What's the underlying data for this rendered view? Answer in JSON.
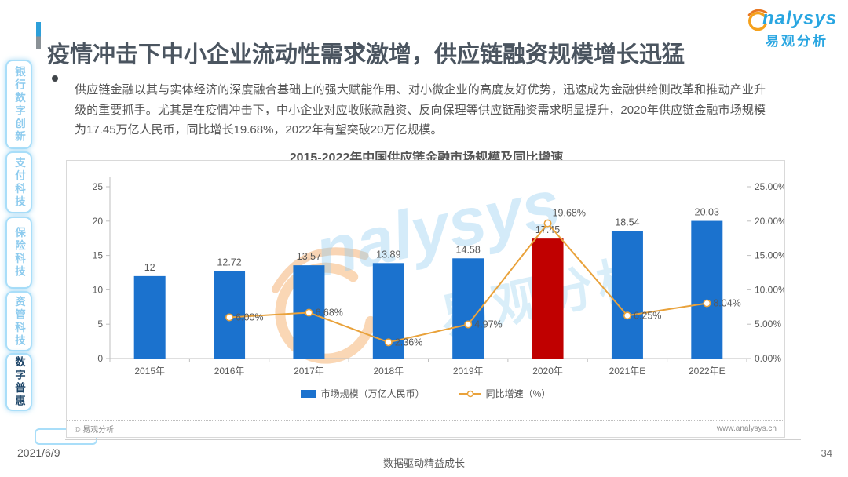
{
  "page": {
    "title": "疫情冲击下中小企业流动性需求激增，供应链融资规模增长迅猛",
    "date": "2021/6/9",
    "footer_slogan": "数据驱动精益成长",
    "page_number": "34"
  },
  "logo": {
    "brand": "nalysys",
    "brand_cn": "易观分析"
  },
  "watermark": {
    "brand": "nalysys",
    "brand_cn": "易观分析"
  },
  "sidebar": {
    "items": [
      {
        "label": "银行数字创新",
        "active": false
      },
      {
        "label": "支付科技",
        "active": false
      },
      {
        "label": "保险科技",
        "active": false
      },
      {
        "label": "资管科技",
        "active": false
      },
      {
        "label": "数字普惠",
        "active": true
      }
    ]
  },
  "bullet": {
    "text": "供应链金融以其与实体经济的深度融合基础上的强大赋能作用、对小微企业的高度友好优势，迅速成为金融供给侧改革和推动产业升级的重要抓手。尤其是在疫情冲击下，中小企业对应收账款融资、反向保理等供应链融资需求明显提升，2020年供应链金融市场规模为17.45万亿人民币，同比增长19.68%，2022年有望突破20万亿规模。"
  },
  "chart_data": {
    "type": "bar+line",
    "title": "2015-2022年中国供应链金融市场规模及同比增速",
    "categories": [
      "2015年",
      "2016年",
      "2017年",
      "2018年",
      "2019年",
      "2020年",
      "2021年E",
      "2022年E"
    ],
    "series": [
      {
        "name": "市场规模（万亿人民币）",
        "type": "bar",
        "values": [
          12,
          12.72,
          13.57,
          13.89,
          14.58,
          17.45,
          18.54,
          20.03
        ],
        "labels": [
          "12",
          "12.72",
          "13.57",
          "13.89",
          "14.58",
          "17.45",
          "18.54",
          "20.03"
        ]
      },
      {
        "name": "同比增速（%）",
        "type": "line",
        "values": [
          null,
          6.0,
          6.68,
          2.36,
          4.97,
          19.68,
          6.25,
          8.04
        ],
        "labels": [
          null,
          "6.00%",
          "6.68%",
          "2.36%",
          "4.97%",
          "19.68%",
          "6.25%",
          "8.04%"
        ]
      }
    ],
    "left_axis": {
      "ticks": [
        "0",
        "5",
        "10",
        "15",
        "20",
        "25"
      ],
      "max": 25
    },
    "right_axis": {
      "ticks": [
        "0.00%",
        "5.00%",
        "10.00%",
        "15.00%",
        "20.00%",
        "25.00%"
      ],
      "max": 25
    },
    "highlight_index": 5,
    "grid": false,
    "legend_position": "bottom",
    "colors": {
      "bar": "#1B72CE",
      "bar_highlight": "#C00000",
      "line": "#E9A23B",
      "axis": "#BFBFBF",
      "label": "#595959"
    }
  },
  "chart_footer": {
    "copyright": "© 易观分析",
    "website": "www.analysys.cn"
  }
}
